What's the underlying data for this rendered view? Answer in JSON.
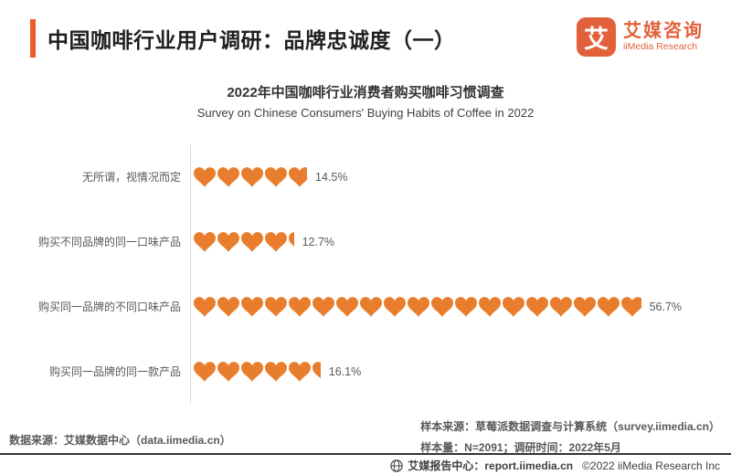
{
  "header": {
    "title": "中国咖啡行业用户调研：品牌忠诚度（一）",
    "logo": {
      "mark": "艾",
      "name_cn": "艾媒咨询",
      "name_en": "iiMedia Research"
    }
  },
  "chart": {
    "title": "2022年中国咖啡行业消费者购买咖啡习惯调查",
    "subtitle": "Survey on Chinese Consumers' Buying Habits of Coffee in 2022"
  },
  "chart_data": {
    "type": "bar",
    "orientation": "horizontal",
    "unit": "%",
    "categories": [
      "无所谓，视情况而定",
      "购买不同品牌的同一口味产品",
      "购买同一品牌的不同口味产品",
      "购买同一品牌的同一款产品"
    ],
    "values": [
      14.5,
      12.7,
      56.7,
      16.1
    ],
    "value_labels": [
      "14.5%",
      "12.7%",
      "56.7%",
      "16.1%"
    ],
    "icon": "heart",
    "percent_per_icon": 3,
    "xlim": [
      0,
      60
    ],
    "colors": {
      "heart": "#E87E2D",
      "axis_line": "#D9D9D9"
    }
  },
  "footer": {
    "data_source": "数据来源：艾媒数据中心（data.iimedia.cn）",
    "sample_source": "样本来源：草莓派数据调查与计算系统（survey.iimedia.cn）",
    "sample_info": "样本量：N=2091；调研时间：2022年5月",
    "report_center": "艾媒报告中心：report.iimedia.cn",
    "copyright": "©2022  iiMedia Research Inc"
  },
  "colors": {
    "accent": "#EB5C2A",
    "logo": "#E2613B",
    "heart": "#E87E2D"
  }
}
